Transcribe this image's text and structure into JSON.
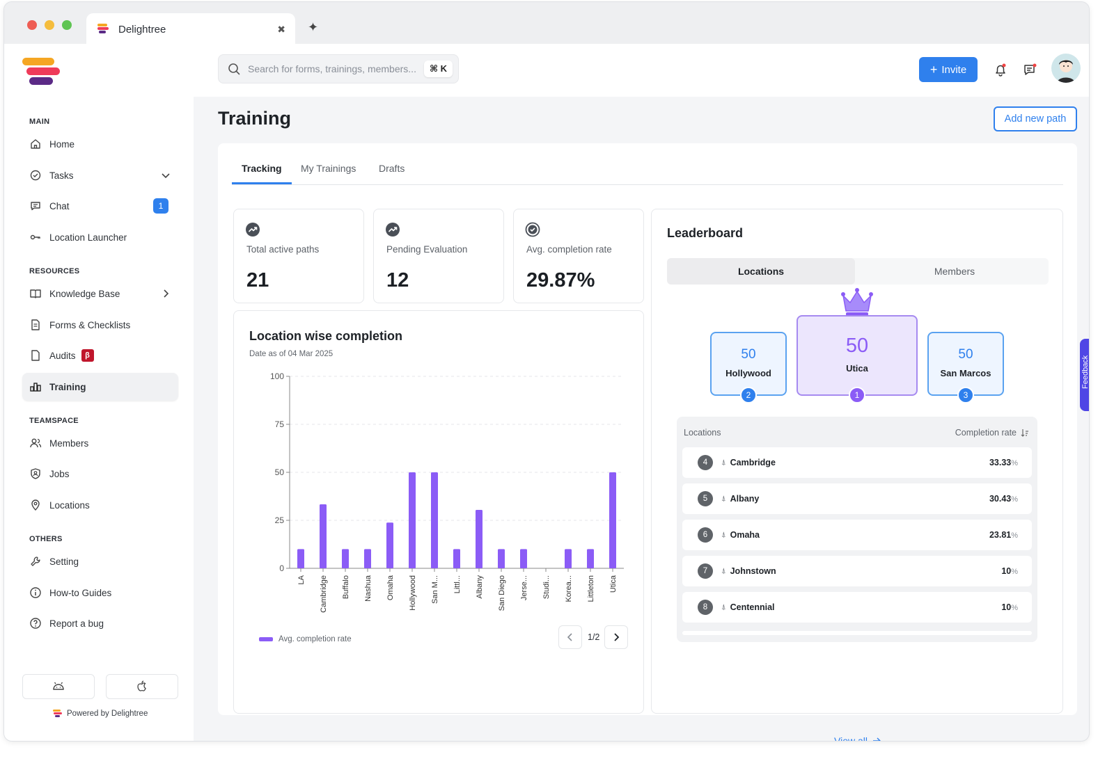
{
  "browser": {
    "tab_title": "Delightree"
  },
  "header": {
    "search_placeholder": "Search for forms, trainings, members...",
    "search_shortcut": "⌘ K",
    "invite_label": "Invite"
  },
  "sidebar": {
    "sections": {
      "main": "MAIN",
      "resources": "RESOURCES",
      "teamspace": "TEAMSPACE",
      "others": "OTHERS"
    },
    "items": {
      "home": "Home",
      "tasks": "Tasks",
      "chat": "Chat",
      "chat_badge": "1",
      "location_launcher": "Location Launcher",
      "knowledge_base": "Knowledge Base",
      "forms": "Forms & Checklists",
      "audits": "Audits",
      "audits_badge": "β",
      "training": "Training",
      "members": "Members",
      "jobs": "Jobs",
      "locations": "Locations",
      "setting": "Setting",
      "guides": "How-to Guides",
      "bug": "Report a bug"
    },
    "powered_by": "Powered by Delightree"
  },
  "page": {
    "title": "Training",
    "add_path_label": "Add new path",
    "tabs": [
      "Tracking",
      "My Trainings",
      "Drafts"
    ]
  },
  "stats": [
    {
      "label": "Total active paths",
      "value": "21",
      "icon": "trend-up-icon"
    },
    {
      "label": "Pending Evaluation",
      "value": "12",
      "icon": "trend-up-icon"
    },
    {
      "label": "Avg. completion rate",
      "value": "29.87%",
      "icon": "check-circle-icon"
    }
  ],
  "chart": {
    "title": "Location wise completion",
    "subtitle": "Date as of 04 Mar 2025",
    "legend": "Avg. completion rate",
    "pager": "1/2"
  },
  "chart_data": {
    "type": "bar",
    "categories": [
      "LA",
      "Cambridge",
      "Buffalo",
      "Nashua",
      "Omaha",
      "Hollywood",
      "San M...",
      "Littl...",
      "Albany",
      "San Diego",
      "Jerse...",
      "Studi...",
      "Korea...",
      "Littleton",
      "Utica"
    ],
    "series": [
      {
        "name": "Avg. completion rate",
        "values": [
          10,
          33.33,
          10,
          10,
          23.81,
          50,
          50,
          10,
          30.43,
          10,
          10,
          0,
          10,
          10,
          50
        ]
      }
    ],
    "yticks": [
      0,
      25,
      50,
      75,
      100
    ],
    "ylim": [
      0,
      100
    ],
    "color": "#8b5cf6",
    "legend_position": "bottom-left"
  },
  "leaderboard": {
    "title": "Leaderboard",
    "segments": [
      "Locations",
      "Members"
    ],
    "podium": [
      {
        "rank": "2",
        "value": "50",
        "name": "Hollywood"
      },
      {
        "rank": "1",
        "value": "50",
        "name": "Utica"
      },
      {
        "rank": "3",
        "value": "50",
        "name": "San Marcos"
      }
    ],
    "col_location": "Locations",
    "col_rate": "Completion rate",
    "rows": [
      {
        "rank": "4",
        "name": "Cambridge",
        "value": "33.33",
        "unit": "%"
      },
      {
        "rank": "5",
        "name": "Albany",
        "value": "30.43",
        "unit": "%"
      },
      {
        "rank": "6",
        "name": "Omaha",
        "value": "23.81",
        "unit": "%"
      },
      {
        "rank": "7",
        "name": "Johnstown",
        "value": "10",
        "unit": "%"
      },
      {
        "rank": "8",
        "name": "Centennial",
        "value": "10",
        "unit": "%"
      }
    ],
    "view_all": "View all"
  },
  "feedback_label": "Feedback",
  "colors": {
    "accent": "#2f80ed",
    "chart_bar": "#8b5cf6",
    "beta_badge": "#c0162c"
  }
}
